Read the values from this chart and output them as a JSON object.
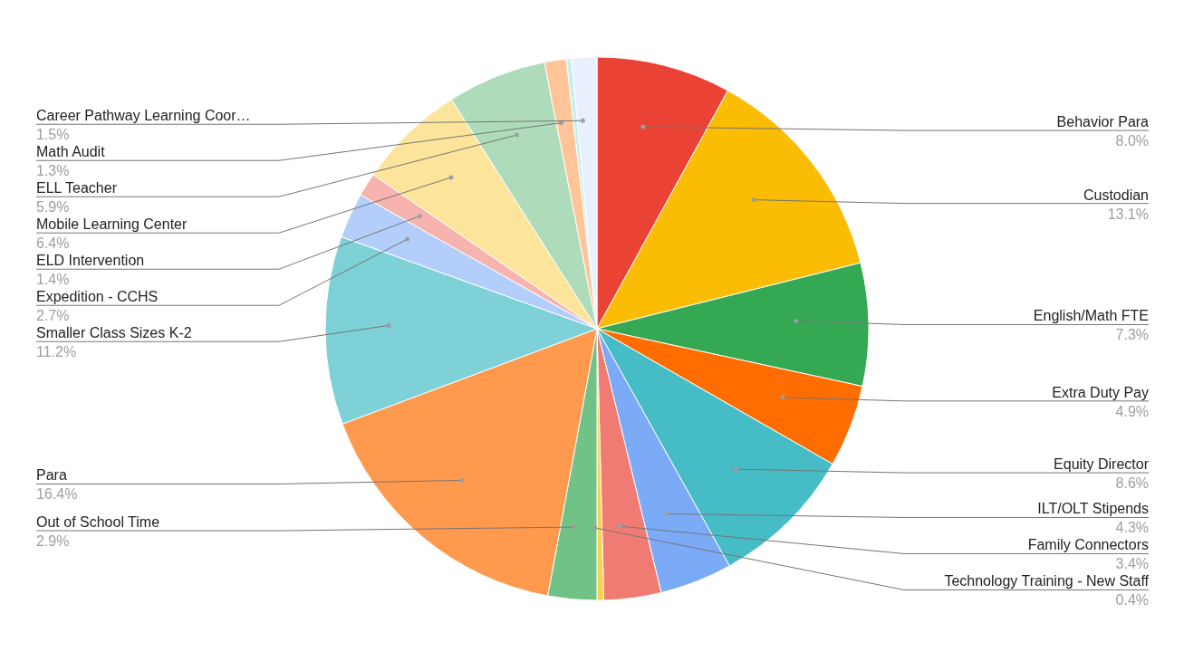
{
  "chart_data": {
    "type": "pie",
    "categories": [
      "Behavior Para",
      "Custodian",
      "English/Math FTE",
      "Extra Duty Pay",
      "Equity Director",
      "ILT/OLT Stipends",
      "Family Connectors",
      "Technology Training - New Staff",
      "Out of School Time",
      "Para",
      "Smaller Class Sizes K-2",
      "Expedition - CCHS",
      "ELD Intervention",
      "Mobile Learning Center",
      "ELL Teacher",
      "Math Audit",
      null,
      "Career Pathway Learning Coor…"
    ],
    "values": [
      8.0,
      13.1,
      7.3,
      4.9,
      8.6,
      4.3,
      3.4,
      0.4,
      2.9,
      16.4,
      11.2,
      2.7,
      1.4,
      6.4,
      5.9,
      1.3,
      0.3,
      1.5
    ],
    "value_labels": [
      "8.0%",
      "13.1%",
      "7.3%",
      "4.9%",
      "8.6%",
      "4.3%",
      "3.4%",
      "0.4%",
      "2.9%",
      "16.4%",
      "11.2%",
      "2.7%",
      "1.4%",
      "6.4%",
      "5.9%",
      "1.3%",
      null,
      "1.5%"
    ],
    "colors": [
      "#ea4335",
      "#fbbc04",
      "#34a853",
      "#ff6d01",
      "#46bdc6",
      "#7baaf7",
      "#f07b72",
      "#fcd04f",
      "#71c287",
      "#ff994d",
      "#7ed1d7",
      "#b3cefb",
      "#f7b4ae",
      "#fde49b",
      "#aedcba",
      "#ffc599",
      "#c9eef0",
      "#e8f0fe"
    ],
    "legend": false
  }
}
